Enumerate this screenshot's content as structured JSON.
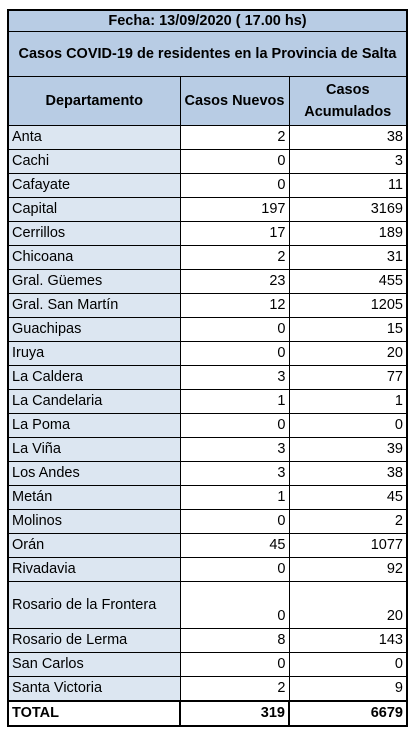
{
  "header": {
    "date_line": "Fecha: 13/09/2020 ( 17.00 hs)",
    "title": "Casos COVID-19 de residentes en la Provincia de Salta"
  },
  "columns": {
    "dept": "Departamento",
    "new": "Casos Nuevos",
    "total": "Casos Acumulados"
  },
  "rows": [
    {
      "dept": "Anta",
      "new": "2",
      "total": "38"
    },
    {
      "dept": "Cachi",
      "new": "0",
      "total": "3"
    },
    {
      "dept": "Cafayate",
      "new": "0",
      "total": "11"
    },
    {
      "dept": "Capital",
      "new": "197",
      "total": "3169"
    },
    {
      "dept": "Cerrillos",
      "new": "17",
      "total": "189"
    },
    {
      "dept": "Chicoana",
      "new": "2",
      "total": "31"
    },
    {
      "dept": "Gral. Güemes",
      "new": "23",
      "total": "455"
    },
    {
      "dept": "Gral. San Martín",
      "new": "12",
      "total": "1205"
    },
    {
      "dept": "Guachipas",
      "new": "0",
      "total": "15"
    },
    {
      "dept": "Iruya",
      "new": "0",
      "total": "20"
    },
    {
      "dept": "La Caldera",
      "new": "3",
      "total": "77"
    },
    {
      "dept": "La Candelaria",
      "new": "1",
      "total": "1"
    },
    {
      "dept": "La Poma",
      "new": "0",
      "total": "0"
    },
    {
      "dept": "La Viña",
      "new": "3",
      "total": "39"
    },
    {
      "dept": "Los Andes",
      "new": "3",
      "total": "38"
    },
    {
      "dept": "Metán",
      "new": "1",
      "total": "45"
    },
    {
      "dept": "Molinos",
      "new": "0",
      "total": "2"
    },
    {
      "dept": "Orán",
      "new": "45",
      "total": "1077"
    },
    {
      "dept": "Rivadavia",
      "new": "0",
      "total": "92"
    },
    {
      "dept": "Rosario de la Frontera",
      "new": "0",
      "total": "20"
    },
    {
      "dept": "Rosario de Lerma",
      "new": "8",
      "total": "143"
    },
    {
      "dept": "San Carlos",
      "new": "0",
      "total": "0"
    },
    {
      "dept": "Santa Victoria",
      "new": "2",
      "total": "9"
    }
  ],
  "totals": {
    "label": "TOTAL",
    "new": "319",
    "total": "6679"
  }
}
